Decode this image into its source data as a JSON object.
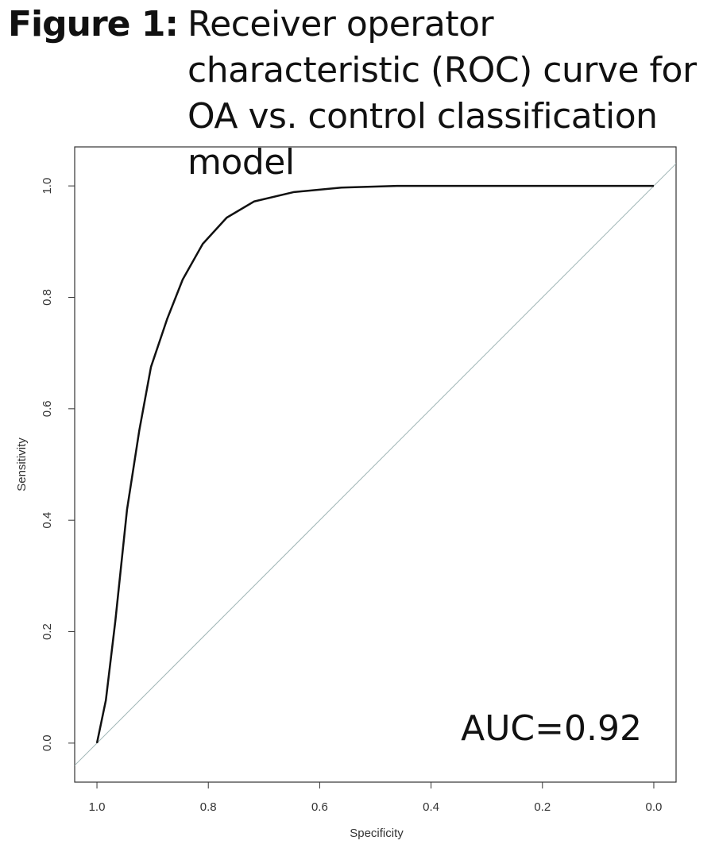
{
  "chart_data": {
    "type": "line",
    "title_label": "Figure 1:",
    "title": "Receiver operator characteristic (ROC) curve for OA vs. control classification model",
    "x_label": "Specificity",
    "y_label": "Sensitivity",
    "annotation": "AUC=0.92",
    "x": [
      1.0,
      0.984,
      0.967,
      0.946,
      0.924,
      0.903,
      0.874,
      0.846,
      0.81,
      0.767,
      0.718,
      0.646,
      0.561,
      0.461,
      0.0
    ],
    "series": [
      {
        "color": "#111111",
        "values": [
          0.0,
          0.077,
          0.219,
          0.419,
          0.561,
          0.675,
          0.761,
          0.832,
          0.896,
          0.943,
          0.972,
          0.989,
          0.997,
          1.0,
          1.0
        ]
      }
    ],
    "xlim": [
      1.04,
      -0.04
    ],
    "ylim": [
      -0.07,
      1.07
    ],
    "xticks": [
      {
        "value": 1,
        "label": "1.0"
      },
      0.8,
      0.6,
      0.4,
      0.2,
      {
        "value": 0,
        "label": "0.0"
      }
    ],
    "yticks": [
      {
        "value": 0,
        "label": "0.0"
      },
      0.2,
      0.4,
      0.6,
      0.8,
      {
        "value": 1,
        "label": "1.0"
      }
    ],
    "reference_color": "#9fb5b5"
  }
}
